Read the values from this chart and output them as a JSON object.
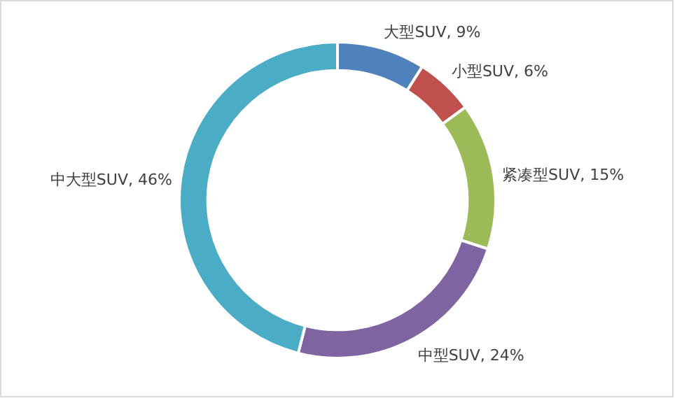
{
  "chart_data": {
    "type": "donut",
    "categories": [
      "大型SUV",
      "小型SUV",
      "紧凑型SUV",
      "中型SUV",
      "中大型SUV"
    ],
    "values": [
      9,
      6,
      15,
      24,
      46
    ],
    "value_labels": [
      ", 9%",
      ", 6%",
      ", 15%",
      ", 24%",
      ", 46%"
    ],
    "colors": [
      "#4f81bd",
      "#c0504d",
      "#9bbb59",
      "#8064a2",
      "#4bacc6"
    ],
    "legend": false
  }
}
